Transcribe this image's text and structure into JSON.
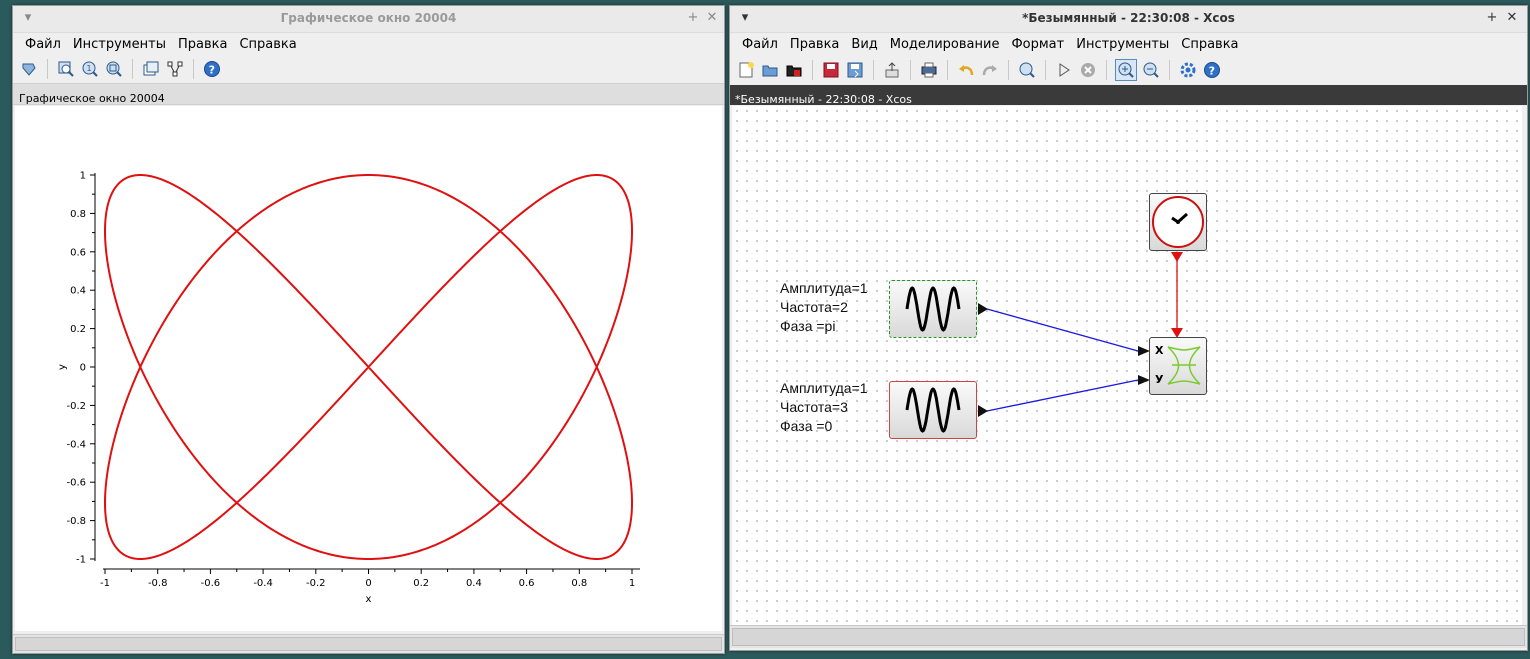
{
  "graphic_window": {
    "title": "Графическое окно 20004",
    "menu": [
      "Файл",
      "Инструменты",
      "Правка",
      "Справка"
    ],
    "tab_label": "Графическое окно 20004",
    "toolbar_icons": [
      "datatip-icon",
      "zoom-icon",
      "zoom-original-icon",
      "zoom-area-icon",
      "figure-icon",
      "tree-icon",
      "help-icon"
    ]
  },
  "xcos_window": {
    "title": "*Безымянный - 22:30:08 - Xcos",
    "tab_label": "*Безымянный - 22:30:08 - Xcos",
    "menu": [
      "Файл",
      "Правка",
      "Вид",
      "Моделирование",
      "Формат",
      "Инструменты",
      "Справка"
    ],
    "toolbar_icons": [
      "new-icon",
      "open-icon",
      "open-file-icon",
      "save-icon",
      "save-as-icon",
      "export-icon",
      "print-icon",
      "undo-icon",
      "redo-icon",
      "fit-diagram-icon",
      "start-icon",
      "stop-icon",
      "zoom-in-icon",
      "zoom-out-icon",
      "setup-icon",
      "help-icon"
    ],
    "blocks": {
      "sine1": {
        "lines": [
          "Амплитуда=1",
          "Частота=2",
          "Фаза =pi"
        ]
      },
      "sine2": {
        "lines": [
          "Амплитуда=1",
          "Частота=3",
          "Фаза =0"
        ]
      },
      "scope": {
        "port_x": "X",
        "port_y": "У"
      }
    },
    "colors": {
      "event_link": "#e01010",
      "data_link": "#1a1adf",
      "selected_block": "#1e9a1e",
      "block_border": "#cc4444"
    }
  },
  "chart_data": {
    "type": "line",
    "title": "",
    "xlabel": "x",
    "ylabel": "y",
    "xlim": [
      -1,
      1
    ],
    "ylim": [
      -1,
      1
    ],
    "x_ticks": [
      "-1",
      "-0.8",
      "-0.6",
      "-0.4",
      "-0.2",
      "0",
      "0.2",
      "0.4",
      "0.6",
      "0.8",
      "1"
    ],
    "y_ticks": [
      "1",
      "0.8",
      "0.6",
      "0.4",
      "0.2",
      "0",
      "-0.2",
      "-0.4",
      "-0.6",
      "-0.8",
      "-1"
    ],
    "series": [
      {
        "x_formula": "sin(2t+pi)",
        "y_formula": "sin(3t)",
        "t_range": [
          0,
          6.2832
        ],
        "color": "#e01010"
      }
    ],
    "grid": false
  }
}
